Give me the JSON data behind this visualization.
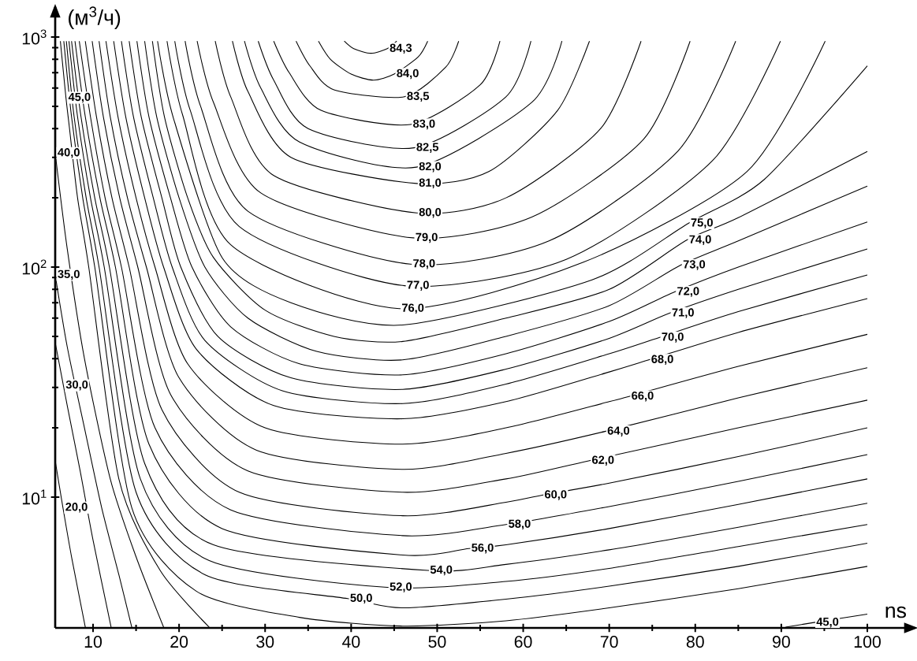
{
  "chart_data": {
    "type": "line",
    "xlabel": "ns",
    "ylabel": "(м$^{3}$/ч)",
    "log": "y",
    "grid": false,
    "line_style": "solid",
    "xlim": [
      5.6,
      105.5
    ],
    "ylim": [
      2.7,
      1350
    ],
    "xticks": [
      10,
      20,
      30,
      40,
      50,
      60,
      70,
      80,
      90,
      100
    ],
    "yticks": [
      {
        "value": 10,
        "label": "10$^{1}$"
      },
      {
        "value": 100,
        "label": "10$^{2}$"
      },
      {
        "value": 1000,
        "label": "10$^{3}$"
      }
    ],
    "series": [
      {
        "color": "#000000",
        "x": [
          39.2,
          40.3,
          42.3,
          44.2,
          45.3
        ],
        "values": [
          960,
          890,
          850,
          890,
          960
        ]
      },
      {
        "color": "#000000",
        "x": [
          36.2,
          37.6,
          40,
          42.6,
          45.0,
          47.8,
          48.9
        ],
        "values": [
          960,
          800,
          690,
          650,
          691,
          820,
          960
        ]
      },
      {
        "color": "#000000",
        "x": [
          33.6,
          35.2,
          38,
          46.2,
          51,
          52.5
        ],
        "values": [
          960,
          750,
          590,
          550,
          740,
          960
        ]
      },
      {
        "color": "#000000",
        "x": [
          31,
          32.8,
          36.5,
          46.9,
          55,
          57.3
        ],
        "values": [
          960,
          700,
          480,
          417,
          620,
          960
        ]
      },
      {
        "color": "#000000",
        "x": [
          29.2,
          31,
          35,
          47.3,
          58,
          60.9
        ],
        "values": [
          960,
          650,
          400,
          330,
          550,
          960
        ]
      },
      {
        "color": "#000000",
        "x": [
          27.6,
          29.5,
          34,
          47.6,
          61,
          64.5
        ],
        "values": [
          960,
          600,
          350,
          272,
          520,
          960
        ]
      },
      {
        "color": "#000000",
        "x": [
          26.2,
          28,
          33,
          47.6,
          56,
          64,
          67.7
        ],
        "values": [
          960,
          580,
          300,
          231,
          260,
          480,
          960
        ]
      },
      {
        "color": "#000000",
        "x": [
          24.2,
          26,
          31,
          47.6,
          58,
          69,
          73.7
        ],
        "values": [
          960,
          550,
          250,
          172,
          200,
          400,
          960
        ]
      },
      {
        "color": "#000000",
        "x": [
          22.1,
          24,
          29.5,
          47.2,
          61,
          74,
          79.4
        ],
        "values": [
          960,
          520,
          210,
          134,
          165,
          360,
          960
        ]
      },
      {
        "color": "#000000",
        "x": [
          20.7,
          22.5,
          28,
          46.9,
          63,
          78,
          84.7
        ],
        "values": [
          960,
          500,
          175,
          103,
          130,
          320,
          960
        ]
      },
      {
        "color": "#000000",
        "x": [
          19.5,
          21.3,
          27,
          46.2,
          65,
          82,
          89.9
        ],
        "values": [
          960,
          480,
          150,
          83,
          108,
          290,
          960
        ]
      },
      {
        "color": "#000000",
        "x": [
          18.6,
          20.4,
          26,
          45.6,
          67,
          86,
          95.1
        ],
        "values": [
          960,
          460,
          125,
          66,
          105,
          260,
          960
        ]
      },
      {
        "color": "#000000",
        "x": [
          17.5,
          19.3,
          25,
          33,
          46,
          68,
          79.2,
          88,
          100
        ],
        "values": [
          960,
          450,
          110,
          70,
          56,
          88,
          155,
          240,
          750
        ]
      },
      {
        "color": "#000000",
        "x": [
          16.9,
          18.3,
          21,
          24,
          30,
          38,
          46,
          58,
          70,
          79.0,
          85,
          100
        ],
        "values": [
          960,
          450,
          200,
          110,
          65,
          50,
          47.5,
          60,
          80,
          131,
          164,
          318
        ]
      },
      {
        "color": "#000000",
        "x": [
          16.0,
          17.4,
          20,
          23,
          28,
          36,
          46,
          58,
          70,
          78.3,
          85,
          100
        ],
        "values": [
          960,
          450,
          200,
          100,
          60,
          43,
          39.5,
          50,
          68,
          102,
          130,
          225
        ]
      },
      {
        "color": "#000000",
        "x": [
          15.1,
          16.5,
          19,
          21.5,
          26,
          34,
          46,
          58,
          70,
          77.6,
          85,
          100
        ],
        "values": [
          960,
          450,
          200,
          100,
          55,
          38,
          34,
          42,
          58,
          78,
          100,
          157
        ]
      },
      {
        "color": "#000000",
        "x": [
          14.2,
          15.6,
          18,
          20.2,
          24.5,
          33,
          46,
          58,
          70,
          77.0,
          85,
          100
        ],
        "values": [
          960,
          450,
          200,
          100,
          50,
          33,
          29.4,
          36,
          49,
          63,
          80,
          120
        ]
      },
      {
        "color": "#000000",
        "x": [
          13.3,
          14.7,
          17,
          19.2,
          23,
          32,
          46,
          58,
          70,
          75.8,
          85,
          100
        ],
        "values": [
          960,
          450,
          200,
          100,
          48,
          29,
          25.5,
          31,
          42,
          49.4,
          64,
          92.5
        ]
      },
      {
        "color": "#000000",
        "x": [
          12.4,
          13.8,
          16,
          18.2,
          22,
          31,
          46,
          58,
          70,
          74.6,
          85,
          100
        ],
        "values": [
          960,
          450,
          200,
          100,
          44,
          25,
          21.9,
          26,
          35,
          39.5,
          52,
          73
        ]
      },
      {
        "color": "#000000",
        "x": [
          11.5,
          12.9,
          15,
          17.2,
          21,
          30,
          46,
          58,
          70,
          72.3,
          85,
          100
        ],
        "values": [
          960,
          450,
          200,
          100,
          38,
          20,
          17,
          20,
          26,
          27.4,
          37,
          51
        ]
      },
      {
        "color": "#000000",
        "x": [
          10.7,
          12,
          14,
          16.2,
          20,
          29,
          46,
          58,
          69.5,
          85,
          100
        ],
        "values": [
          960,
          450,
          200,
          100,
          33,
          16,
          13.2,
          15.5,
          19.3,
          27,
          36.5
        ]
      },
      {
        "color": "#000000",
        "x": [
          9.9,
          11.2,
          13.1,
          15.2,
          19,
          28,
          46,
          58,
          67.7,
          85,
          100
        ],
        "values": [
          960,
          450,
          200,
          100,
          28,
          13,
          10.5,
          12,
          14.4,
          20,
          26.4
        ]
      },
      {
        "color": "#000000",
        "x": [
          9.1,
          10.4,
          12.2,
          14.2,
          18,
          27,
          46,
          58,
          62.2,
          70,
          85,
          100
        ],
        "values": [
          960,
          450,
          200,
          100,
          24,
          10.5,
          8.3,
          9.5,
          10.2,
          11.5,
          15,
          20
        ]
      },
      {
        "color": "#000000",
        "x": [
          8.4,
          9.7,
          11.4,
          13.3,
          17.2,
          26,
          46,
          58,
          70,
          85,
          100
        ],
        "values": [
          960,
          450,
          200,
          100,
          20,
          8.8,
          6.8,
          7.6,
          9.1,
          11.7,
          15.3
        ]
      },
      {
        "color": "#000000",
        "x": [
          7.9,
          9.1,
          10.8,
          12.6,
          16.5,
          25,
          46,
          53.7,
          58,
          70,
          85,
          100
        ],
        "values": [
          960,
          450,
          200,
          100,
          17,
          7.3,
          5.6,
          5.98,
          6.2,
          7.3,
          9.3,
          12
        ]
      },
      {
        "color": "#000000",
        "x": [
          7.5,
          8.6,
          10.2,
          11.9,
          16,
          24,
          48.9,
          58,
          70,
          85,
          100
        ],
        "values": [
          960,
          450,
          200,
          100,
          14,
          6.2,
          4.8,
          5.1,
          5.9,
          7.4,
          9.4
        ]
      },
      {
        "color": "#000000",
        "x": [
          7.2,
          8.2,
          9.7,
          11.3,
          15.5,
          23.5,
          44.2,
          58,
          70,
          85,
          100
        ],
        "values": [
          960,
          450,
          200,
          100,
          12,
          5.3,
          4.05,
          4.3,
          4.9,
          6.1,
          7.6
        ]
      },
      {
        "color": "#000000",
        "x": [
          6.9,
          7.8,
          9.2,
          10.7,
          15,
          23,
          39.6,
          46,
          58,
          70,
          85,
          100
        ],
        "values": [
          960,
          450,
          200,
          100,
          10.5,
          4.6,
          3.62,
          3.3,
          3.6,
          4.1,
          5.0,
          6.3
        ]
      },
      {
        "color": "#000000",
        "x": [
          6.6,
          7.5,
          8.8,
          10.2,
          14.5,
          22,
          34,
          46,
          58,
          70,
          85,
          100
        ],
        "values": [
          960,
          450,
          200,
          100,
          9,
          3.9,
          3.0,
          2.75,
          2.9,
          3.3,
          4.0,
          5.0
        ]
      },
      {
        "color": "#000000",
        "x": [
          6.2,
          6.85,
          7.2,
          8.2,
          9.5,
          13,
          17.8,
          23.5,
          50,
          90.5,
          93.8,
          100
        ],
        "values": [
          960,
          545,
          420,
          200,
          100,
          12,
          4.8,
          2.72,
          null,
          2.72,
          2.85,
          3.1
        ]
      },
      {
        "color": "#000000",
        "x": [
          5.6,
          7,
          9,
          12,
          15,
          18.2
        ],
        "values": [
          313,
          120,
          40,
          12,
          5.5,
          2.72
        ]
      },
      {
        "color": "#000000",
        "x": [
          5.6,
          7,
          9,
          11,
          13,
          14.5
        ],
        "values": [
          92.5,
          45,
          20,
          9,
          4.6,
          2.72
        ]
      },
      {
        "color": "#000000",
        "x": [
          5.6,
          6.55,
          7,
          8.5,
          10,
          12.1
        ],
        "values": [
          47,
          30.6,
          25,
          13,
          6.5,
          2.72
        ]
      },
      {
        "color": "#000000",
        "x": [
          5.6,
          6.5,
          7.5,
          9.1
        ],
        "values": [
          14.4,
          9,
          5.5,
          2.72
        ]
      }
    ],
    "annotations": [
      {
        "text": "84,3",
        "x": 44.2,
        "y": 890
      },
      {
        "text": "84,0",
        "x": 45.0,
        "y": 691
      },
      {
        "text": "83,5",
        "x": 46.2,
        "y": 550
      },
      {
        "text": "83,0",
        "x": 46.9,
        "y": 417
      },
      {
        "text": "82,5",
        "x": 47.3,
        "y": 330
      },
      {
        "text": "82,0",
        "x": 47.6,
        "y": 272
      },
      {
        "text": "81,0",
        "x": 47.6,
        "y": 231
      },
      {
        "text": "80,0",
        "x": 47.6,
        "y": 172
      },
      {
        "text": "79,0",
        "x": 47.2,
        "y": 134
      },
      {
        "text": "78,0",
        "x": 46.9,
        "y": 103
      },
      {
        "text": "77,0",
        "x": 46.2,
        "y": 83
      },
      {
        "text": "76,0",
        "x": 45.6,
        "y": 66
      },
      {
        "text": "75,0",
        "x": 79.2,
        "y": 155
      },
      {
        "text": "74,0",
        "x": 79.0,
        "y": 131
      },
      {
        "text": "73,0",
        "x": 78.3,
        "y": 102
      },
      {
        "text": "72,0",
        "x": 77.6,
        "y": 78
      },
      {
        "text": "71,0",
        "x": 77.0,
        "y": 63
      },
      {
        "text": "70,0",
        "x": 75.8,
        "y": 49.4
      },
      {
        "text": "68,0",
        "x": 74.6,
        "y": 39.5
      },
      {
        "text": "66,0",
        "x": 72.3,
        "y": 27.4
      },
      {
        "text": "64,0",
        "x": 69.5,
        "y": 19.3
      },
      {
        "text": "62,0",
        "x": 67.7,
        "y": 14.4
      },
      {
        "text": "60,0",
        "x": 62.2,
        "y": 10.2
      },
      {
        "text": "58,0",
        "x": 58,
        "y": 7.6
      },
      {
        "text": "56,0",
        "x": 53.7,
        "y": 5.98
      },
      {
        "text": "54,0",
        "x": 48.9,
        "y": 4.8
      },
      {
        "text": "52,0",
        "x": 44.2,
        "y": 4.05
      },
      {
        "text": "50,0",
        "x": 39.6,
        "y": 3.62
      },
      {
        "text": "45,0",
        "x": 93.8,
        "y": 2.85
      },
      {
        "text": "45,0",
        "x": 6.85,
        "y": 545
      },
      {
        "text": "40,0",
        "x": 5.6,
        "y": 313
      },
      {
        "text": "35,0",
        "x": 5.6,
        "y": 92.5
      },
      {
        "text": "30,0",
        "x": 6.55,
        "y": 30.6
      },
      {
        "text": "20,0",
        "x": 6.5,
        "y": 9
      }
    ]
  }
}
